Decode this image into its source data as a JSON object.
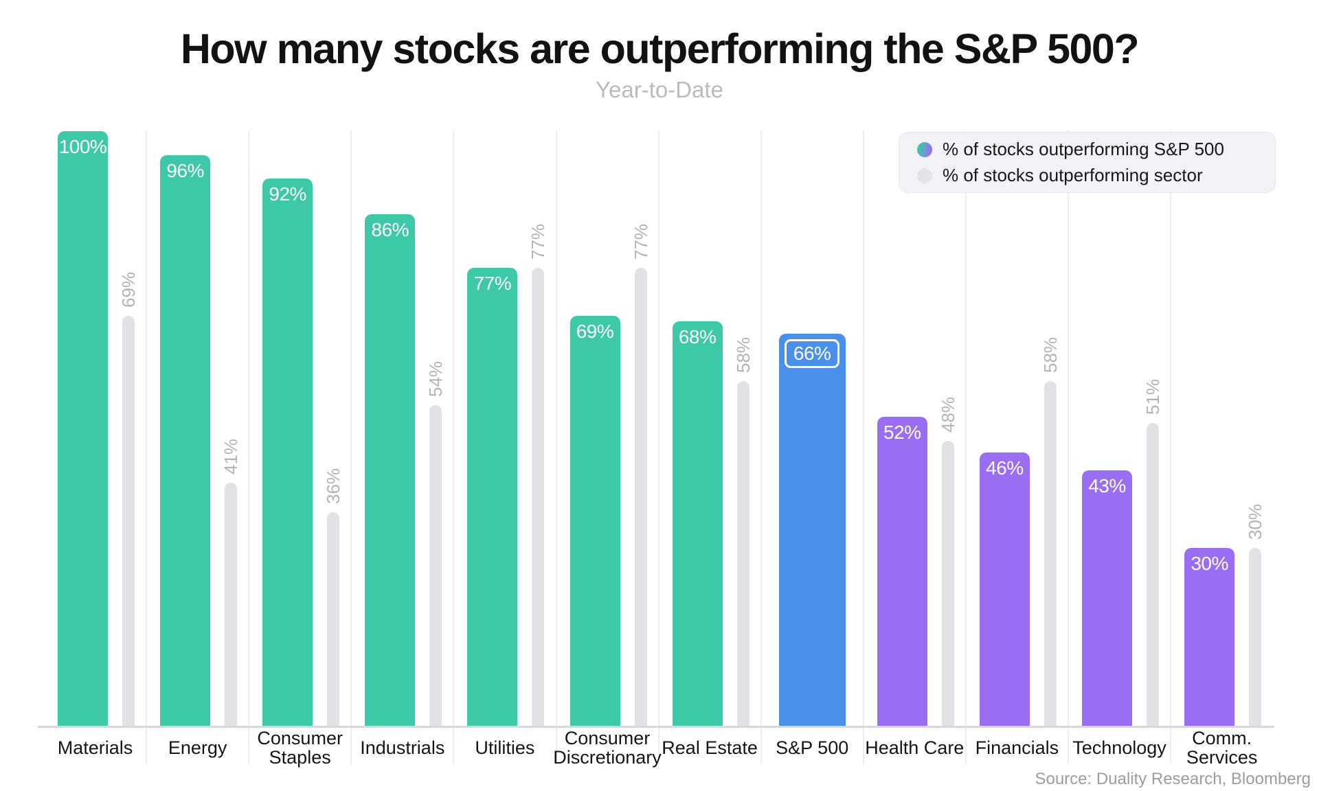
{
  "header": {
    "title": "How many stocks are outperforming the S&P 500?",
    "subtitle": "Year-to-Date"
  },
  "source_note": "Source: Duality Research, Bloomberg",
  "chart_data": {
    "type": "bar",
    "title": "How many stocks are outperforming the S&P 500?",
    "subtitle": "Year-to-Date",
    "source": "Source: Duality Research, Bloomberg",
    "unit": "%",
    "ylim": [
      0,
      100
    ],
    "grid": "vertical-group-separators",
    "legend_position": "top-right",
    "categories": [
      "Materials",
      "Energy",
      "Consumer Staples",
      "Industrials",
      "Utilities",
      "Consumer Discretionary",
      "Real Estate",
      "S&P 500",
      "Health Care",
      "Financials",
      "Technology",
      "Comm. Services"
    ],
    "series": [
      {
        "name": "% of stocks outperforming S&P 500",
        "values": [
          100,
          96,
          92,
          86,
          77,
          69,
          68,
          66,
          52,
          46,
          43,
          30
        ]
      },
      {
        "name": "% of stocks outperforming sector",
        "values": [
          69,
          41,
          36,
          54,
          77,
          77,
          58,
          null,
          48,
          58,
          51,
          30
        ]
      }
    ],
    "highlight_category": "S&P 500",
    "bar_color_keys": [
      "teal",
      "teal",
      "teal",
      "teal",
      "teal",
      "teal",
      "teal",
      "blue",
      "purple",
      "purple",
      "purple",
      "purple"
    ],
    "colors": {
      "teal": "#3dc9a8",
      "blue": "#4a90ea",
      "purple": "#9a6ef2",
      "gray_bar": "#e2e2e6",
      "legend_gradient_start": "#3dc9a8",
      "legend_gradient_end": "#9a6ef2",
      "legend_gray_dot": "#e3e4e8"
    }
  }
}
